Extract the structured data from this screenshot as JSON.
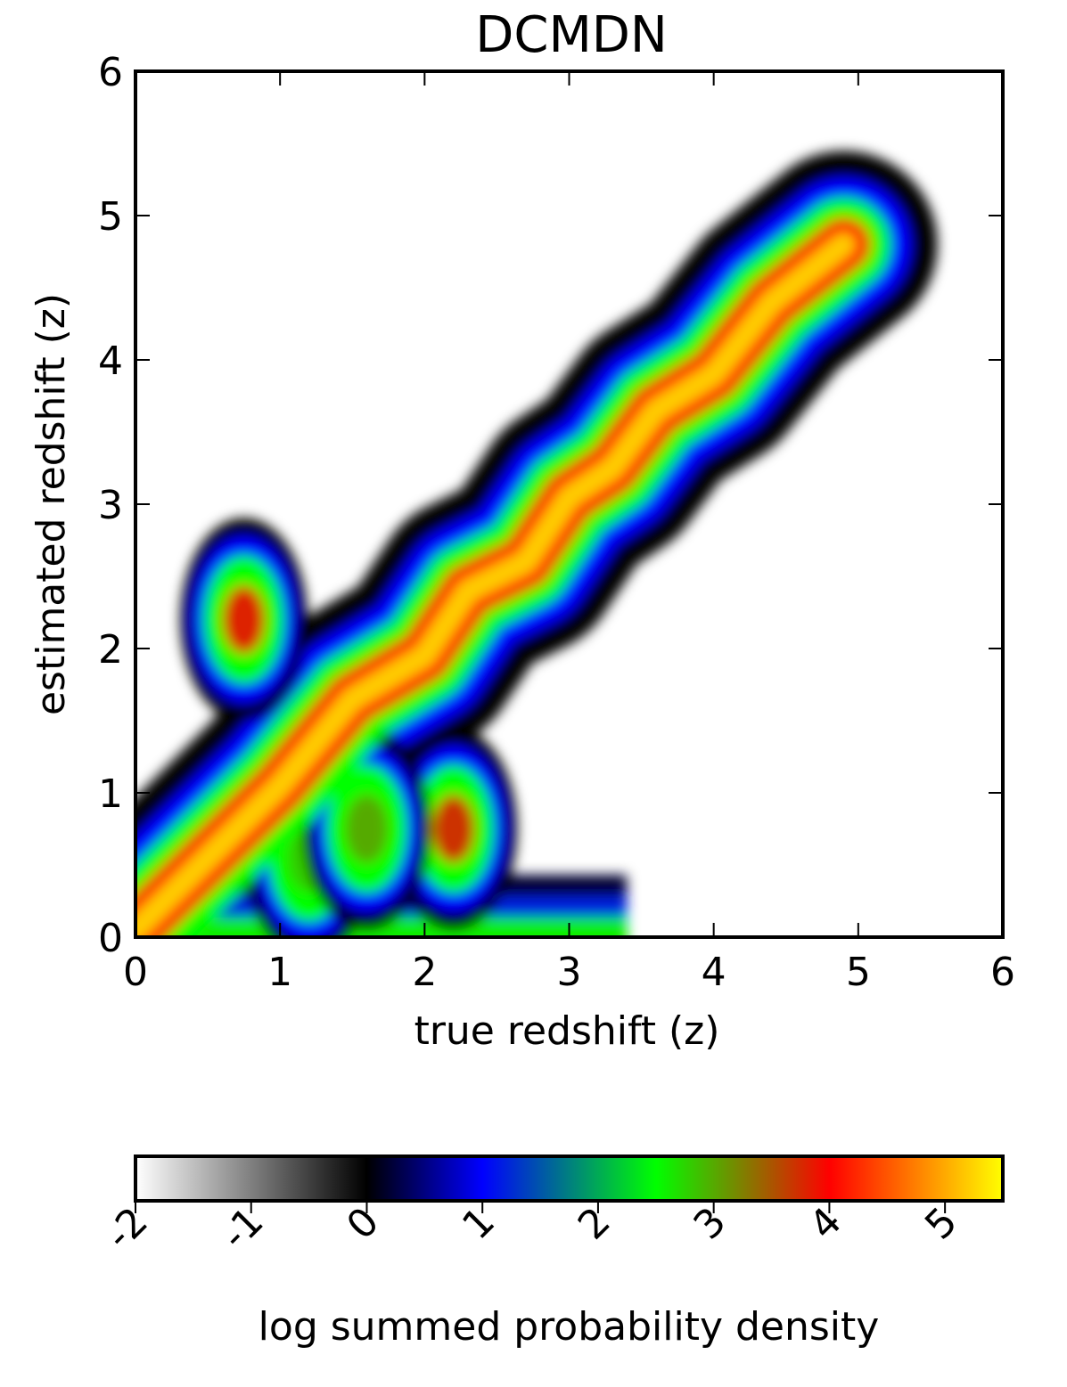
{
  "chart_data": {
    "type": "heatmap",
    "title": "DCMDN",
    "xlabel": "true redshift (z)",
    "ylabel": "estimated redshift (z)",
    "xlim": [
      0,
      6
    ],
    "ylim": [
      0,
      6
    ],
    "xticks": [
      "0",
      "1",
      "2",
      "3",
      "4",
      "5",
      "6"
    ],
    "yticks": [
      "0",
      "1",
      "2",
      "3",
      "4",
      "5",
      "6"
    ],
    "grid": false,
    "colorbar": {
      "label": "log summed probability density",
      "range": [
        -2,
        5.5
      ],
      "ticks": [
        "-2",
        "-1",
        "0",
        "1",
        "2",
        "3",
        "4",
        "5"
      ],
      "stops": [
        {
          "value": -2.0,
          "color": "#ffffff"
        },
        {
          "value": 0.0,
          "color": "#000000"
        },
        {
          "value": 1.0,
          "color": "#0000ff"
        },
        {
          "value": 2.5,
          "color": "#00ff00"
        },
        {
          "value": 4.0,
          "color": "#ff0000"
        },
        {
          "value": 5.5,
          "color": "#ffff00"
        }
      ]
    },
    "ridge": {
      "description_free": true,
      "points": [
        [
          0,
          0.05
        ],
        [
          0.5,
          0.55
        ],
        [
          1.0,
          1.05
        ],
        [
          1.5,
          1.65
        ],
        [
          2.0,
          1.95
        ],
        [
          2.3,
          2.4
        ],
        [
          2.7,
          2.6
        ],
        [
          3.0,
          3.05
        ],
        [
          3.3,
          3.25
        ],
        [
          3.6,
          3.65
        ],
        [
          4.0,
          3.9
        ],
        [
          4.4,
          4.4
        ],
        [
          4.9,
          4.8
        ]
      ]
    },
    "secondary_blobs": [
      {
        "x": 0.75,
        "y": 2.2,
        "level": 3.8
      },
      {
        "x": 2.2,
        "y": 0.75,
        "level": 3.7
      },
      {
        "x": 1.2,
        "y": 0.55,
        "level": 2.8
      },
      {
        "x": 1.6,
        "y": 0.75,
        "level": 3.0
      }
    ]
  }
}
